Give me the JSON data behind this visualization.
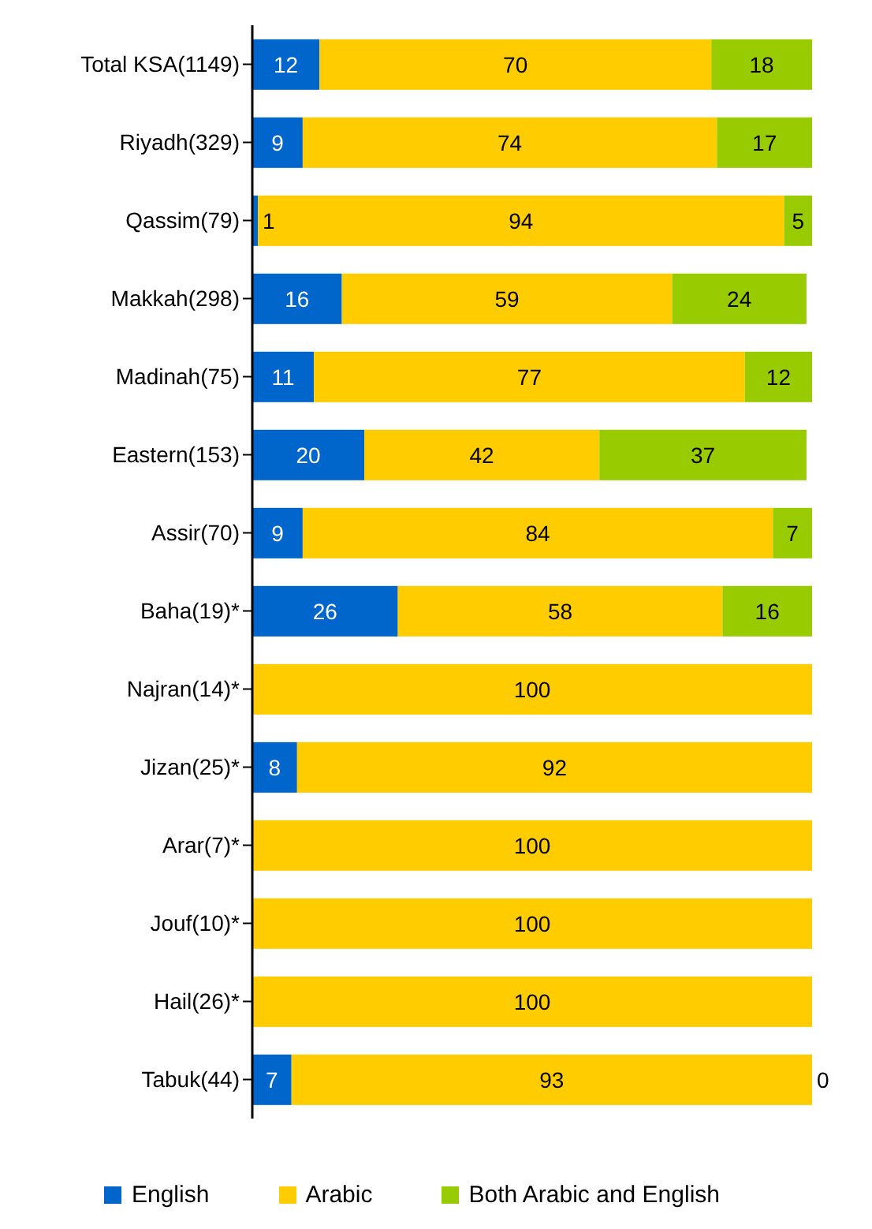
{
  "chart_data": {
    "type": "bar",
    "orientation": "horizontal",
    "stacked": true,
    "data_labels": true,
    "legend": "bottom",
    "categories": [
      "Total KSA(1149)",
      "Riyadh(329)",
      "Qassim(79)",
      "Makkah(298)",
      "Madinah(75)",
      "Eastern(153)",
      "Assir(70)",
      "Baha(19)*",
      "Najran(14)*",
      "Jizan(25)*",
      "Arar(7)*",
      "Jouf(10)*",
      "Hail(26)*",
      "Tabuk(44)"
    ],
    "series": [
      {
        "name": "English",
        "color": "#0066cc",
        "values": [
          12,
          9,
          1,
          16,
          11,
          20,
          9,
          26,
          null,
          8,
          null,
          null,
          null,
          7
        ]
      },
      {
        "name": "Arabic",
        "color": "#ffcc00",
        "values": [
          70,
          74,
          94,
          59,
          77,
          42,
          84,
          58,
          100,
          92,
          100,
          100,
          100,
          93
        ]
      },
      {
        "name": "Both Arabic and English",
        "color": "#99cc00",
        "values": [
          18,
          17,
          5,
          24,
          12,
          37,
          7,
          16,
          null,
          null,
          null,
          null,
          null,
          0
        ]
      }
    ]
  }
}
